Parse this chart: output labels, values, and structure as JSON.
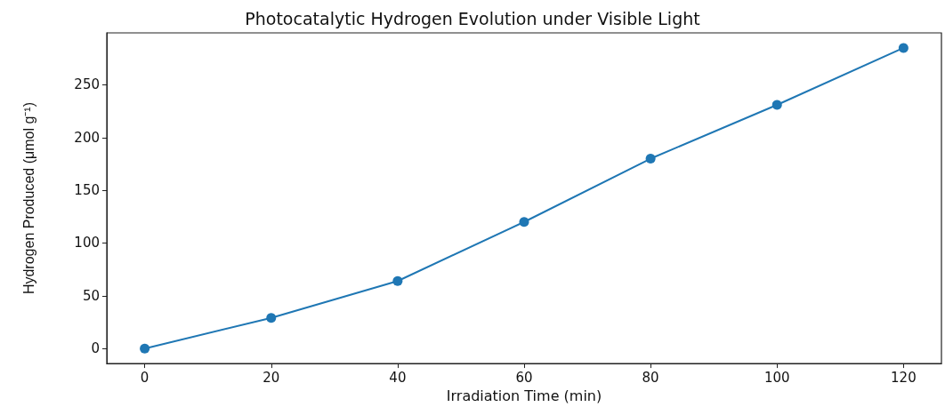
{
  "chart_data": {
    "type": "line",
    "title": "Photocatalytic Hydrogen Evolution under Visible Light",
    "xlabel": "Irradiation Time (min)",
    "ylabel": "Hydrogen Produced (μmol g⁻¹)",
    "x": [
      0,
      20,
      40,
      60,
      80,
      100,
      120
    ],
    "series": [
      {
        "color": "#1f77b4",
        "values": [
          0,
          29,
          64,
          120,
          180,
          231,
          285
        ]
      }
    ],
    "xlim": [
      -6,
      126
    ],
    "xticks": [
      0,
      20,
      40,
      60,
      80,
      100,
      120
    ],
    "ylim": [
      -14.25,
      299.25
    ],
    "yticks": [
      0,
      50,
      100,
      150,
      200,
      250
    ],
    "marker": "circle",
    "line_style": "solid"
  }
}
